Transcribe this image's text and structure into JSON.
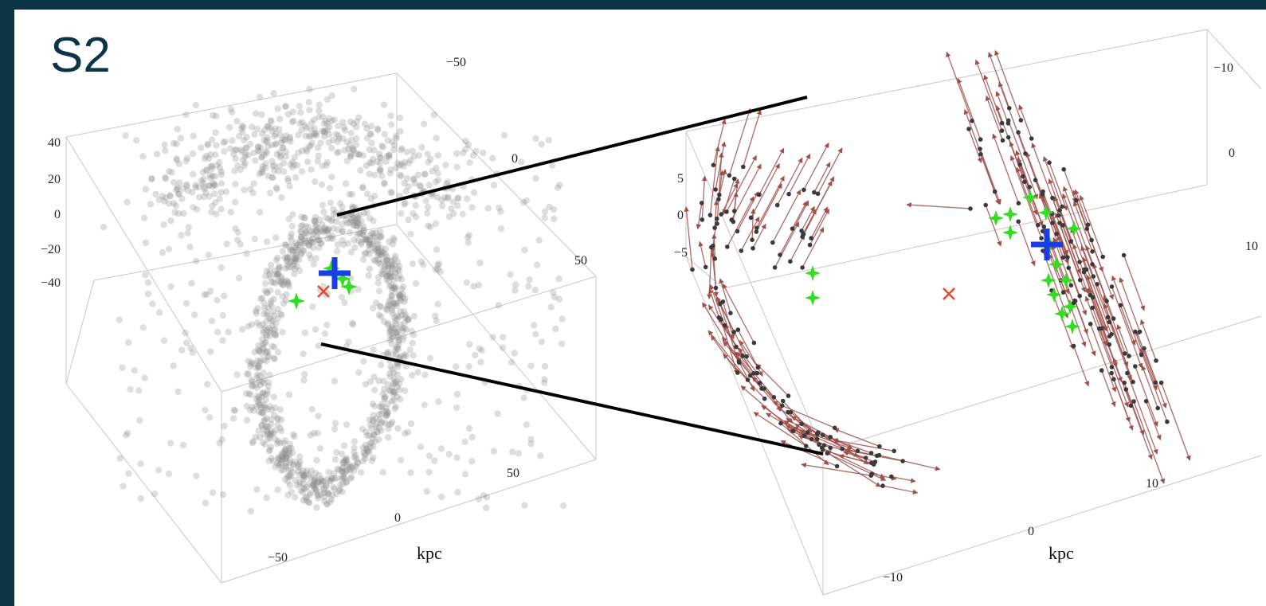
{
  "slide": {
    "title": "S2"
  },
  "panels": [
    {
      "id": "left",
      "axis_label": "kpc",
      "z_ticks": [
        "40",
        "20",
        "0",
        "−20",
        "−40"
      ],
      "right_ticks": [
        "−50",
        "0",
        "50"
      ],
      "front_ticks": [
        "50",
        "0",
        "−50"
      ]
    },
    {
      "id": "right",
      "axis_label": "kpc",
      "z_ticks": [
        "5",
        "0",
        "−5"
      ],
      "right_ticks": [
        "−10",
        "0",
        "10"
      ],
      "front_ticks": [
        "10",
        "0",
        "−10"
      ]
    }
  ],
  "colors": {
    "background": "#0b3445",
    "star_gray": "#888888",
    "star_dark": "#3a3a3a",
    "arrow": "#a0504c",
    "green_marker": "#33dd22",
    "blue_marker": "#1a3ee6",
    "red_marker": "#e84a2a",
    "zoom_lines": "#000000"
  },
  "icons": {
    "green_marker": "star-burst",
    "blue_marker": "plus",
    "red_marker": "x-cross"
  }
}
